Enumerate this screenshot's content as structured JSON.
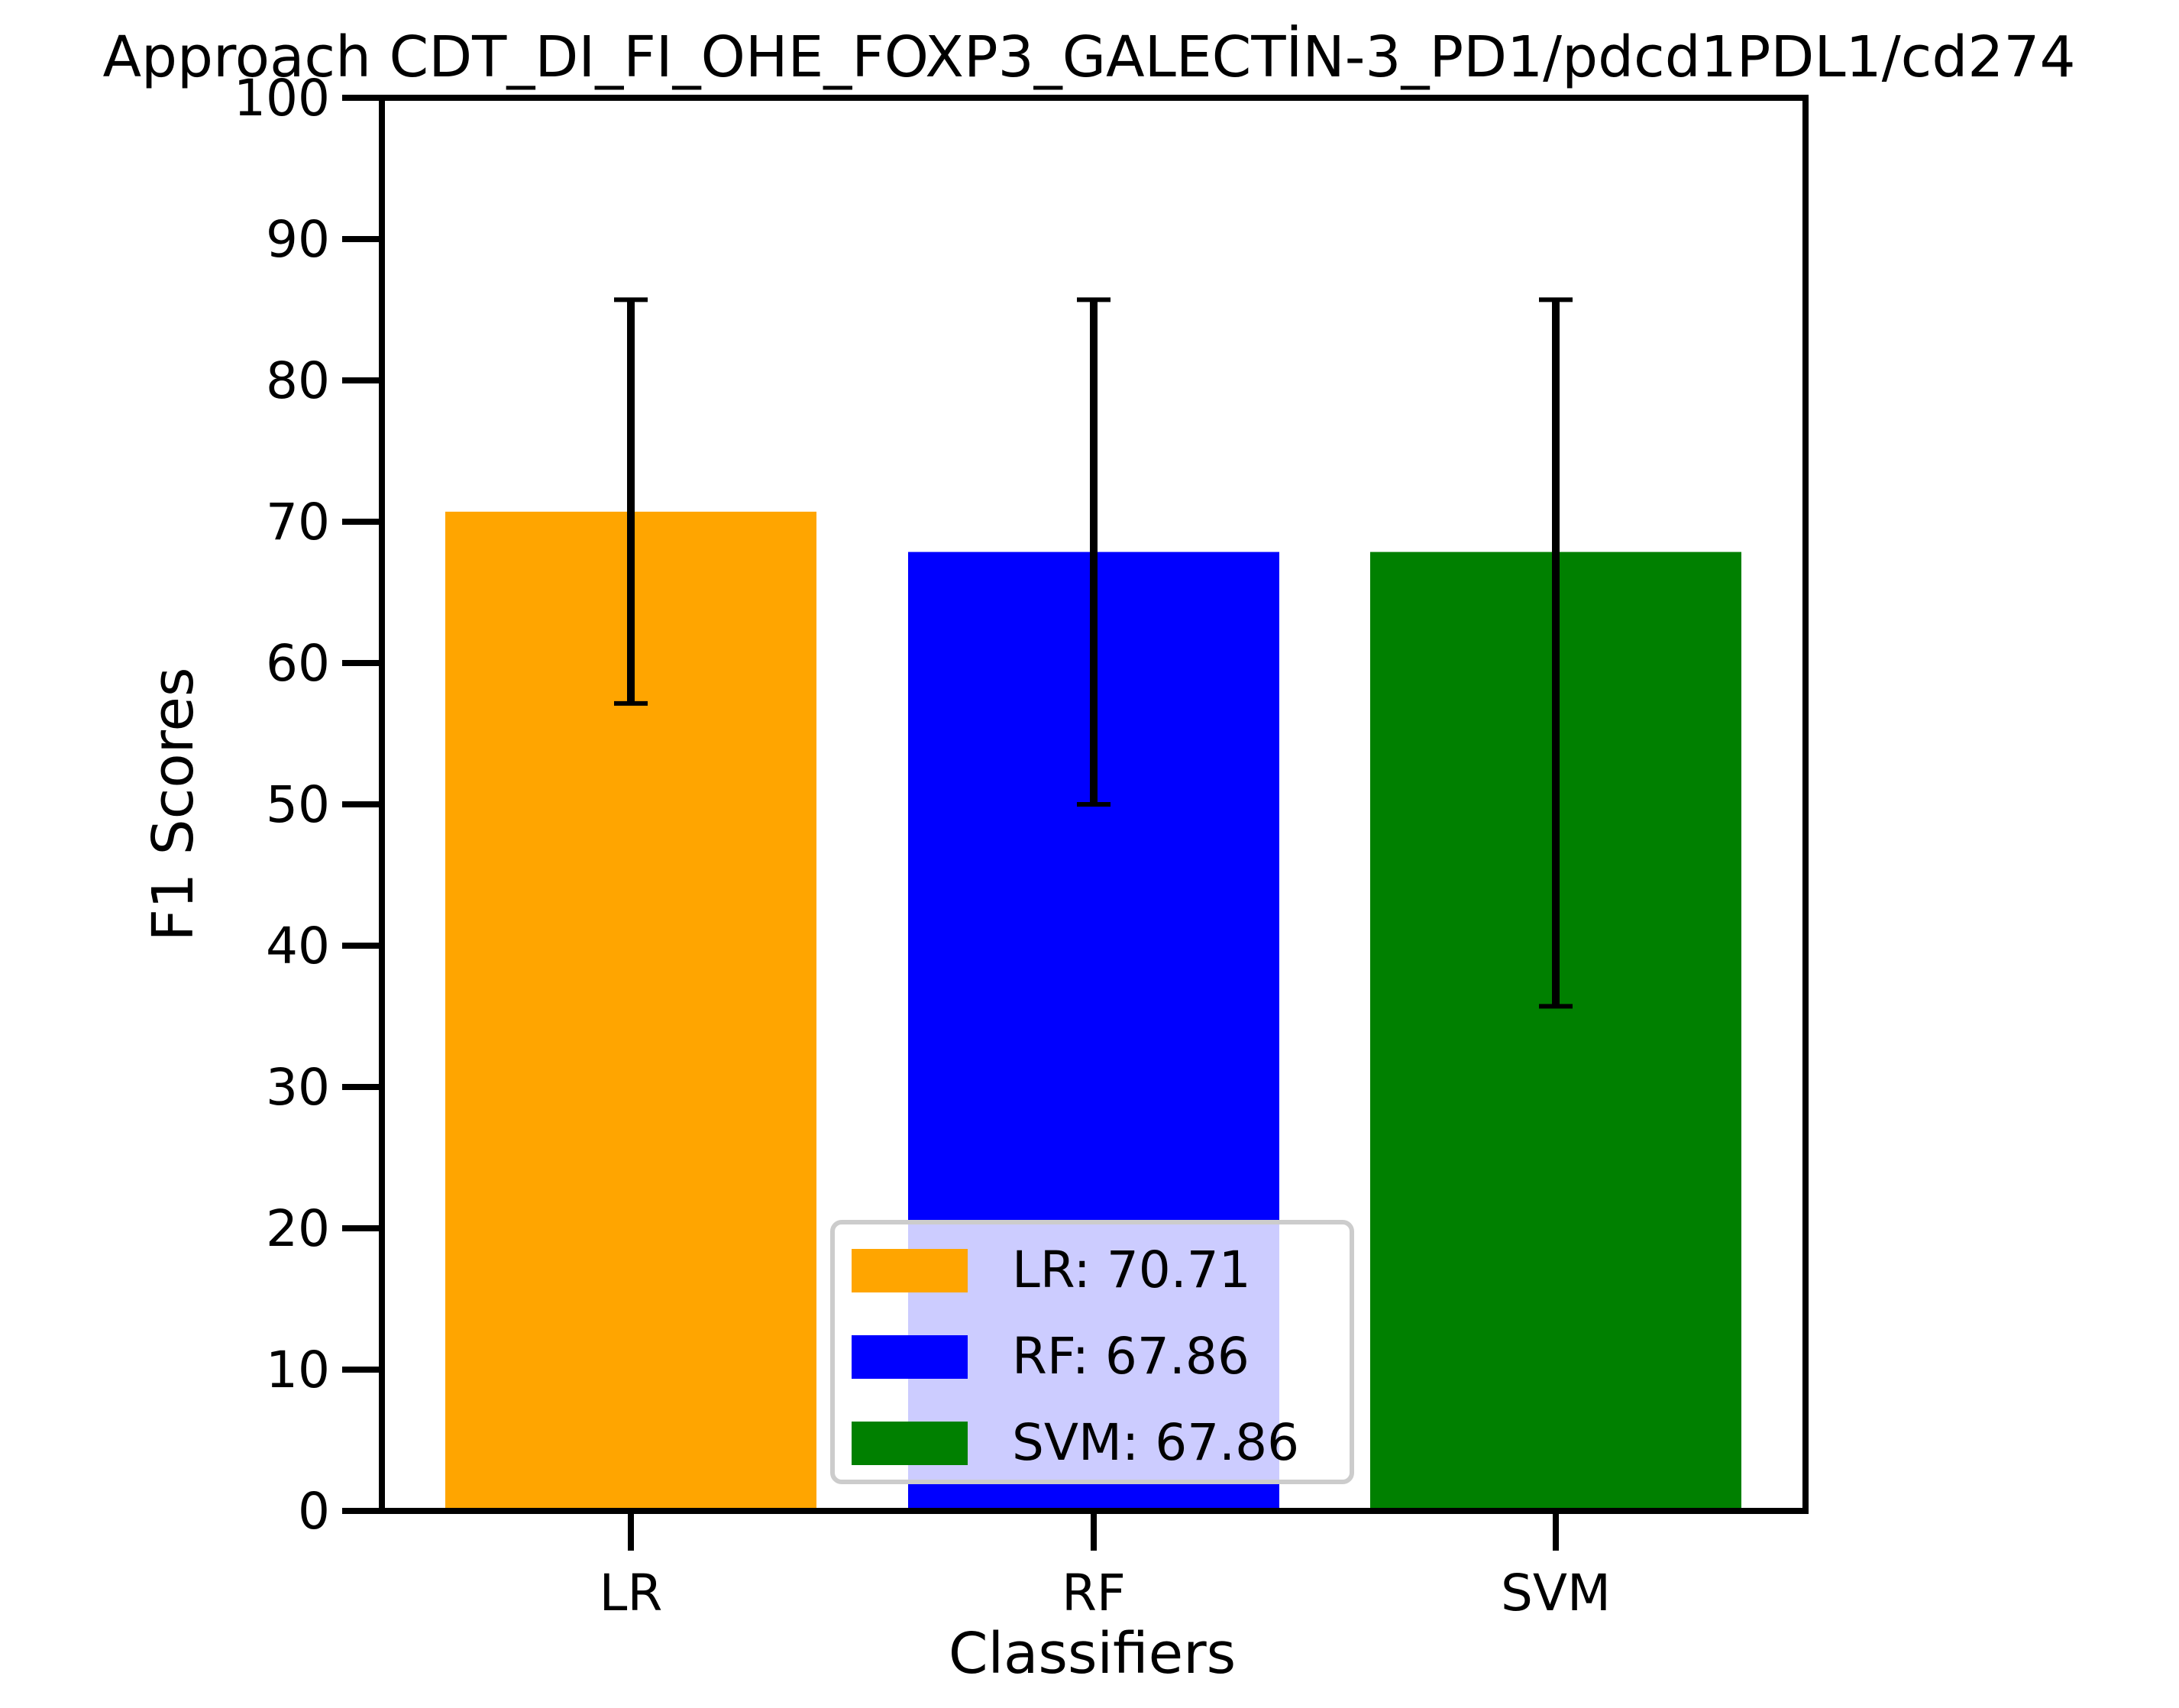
{
  "chart_data": {
    "type": "bar",
    "title": "Approach CDT_DI_FI_OHE_FOXP3_GALECTİN-3_PD1/pdcd1PDL1/cd274",
    "xlabel": "Classifiers",
    "ylabel": "F1 Scores",
    "categories": [
      "LR",
      "RF",
      "SVM"
    ],
    "values": [
      70.71,
      67.86,
      67.86
    ],
    "error_low": [
      57.14,
      50.0,
      35.71
    ],
    "error_high": [
      85.71,
      85.71,
      85.71
    ],
    "colors": [
      "#ffa500",
      "#0000ff",
      "#008000"
    ],
    "ylim": [
      0,
      100
    ],
    "yticks": [
      "0",
      "10",
      "20",
      "30",
      "40",
      "50",
      "60",
      "70",
      "80",
      "90",
      "100"
    ],
    "grid": false,
    "legend": {
      "placement": "lower-center",
      "entries": [
        "LR: 70.71",
        "RF: 67.86",
        "SVM: 67.86"
      ]
    }
  }
}
